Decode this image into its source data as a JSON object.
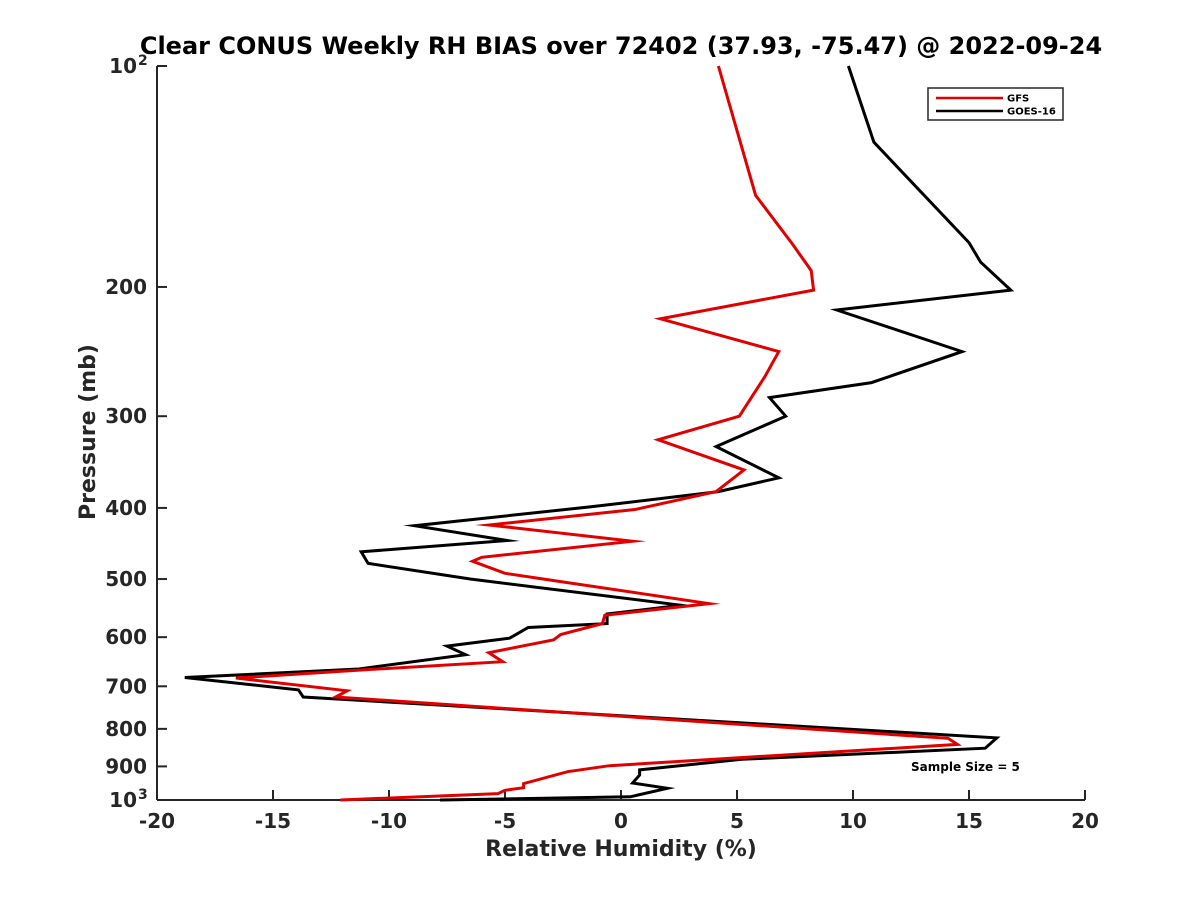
{
  "chart_data": {
    "type": "line",
    "title": "Clear CONUS Weekly RH BIAS over 72402 (37.93, -75.47) @ 2022-09-24",
    "xlabel": "Relative Humidity (%)",
    "ylabel": "Pressure (mb)",
    "xlim": [
      -20,
      20
    ],
    "ylim": [
      100,
      1000
    ],
    "yscale": "log",
    "y_reversed": true,
    "x_ticks": [
      {
        "value": -20,
        "label": "-20"
      },
      {
        "value": -15,
        "label": "-15"
      },
      {
        "value": -10,
        "label": "-10"
      },
      {
        "value": -5,
        "label": "-5"
      },
      {
        "value": 0,
        "label": "0"
      },
      {
        "value": 5,
        "label": "5"
      },
      {
        "value": 10,
        "label": "10"
      },
      {
        "value": 15,
        "label": "15"
      },
      {
        "value": 20,
        "label": "20"
      }
    ],
    "y_ticks": [
      {
        "value": 100,
        "label": "10",
        "sup": "2"
      },
      {
        "value": 200,
        "label": "200",
        "sup": ""
      },
      {
        "value": 300,
        "label": "300",
        "sup": ""
      },
      {
        "value": 400,
        "label": "400",
        "sup": ""
      },
      {
        "value": 500,
        "label": "500",
        "sup": ""
      },
      {
        "value": 600,
        "label": "600",
        "sup": ""
      },
      {
        "value": 700,
        "label": "700",
        "sup": ""
      },
      {
        "value": 800,
        "label": "800",
        "sup": ""
      },
      {
        "value": 900,
        "label": "900",
        "sup": ""
      },
      {
        "value": 1000,
        "label": "10",
        "sup": "3"
      }
    ],
    "legend_position": "top-right",
    "annotation": "Sample Size = 5",
    "series": [
      {
        "name": "GFS",
        "color": "#e00000",
        "points": [
          [
            4.2,
            100
          ],
          [
            5.8,
            150
          ],
          [
            7.4,
            175
          ],
          [
            8.2,
            190
          ],
          [
            8.3,
            202
          ],
          [
            1.7,
            221
          ],
          [
            6.8,
            245
          ],
          [
            6.2,
            265
          ],
          [
            5.1,
            300
          ],
          [
            1.6,
            323
          ],
          [
            5.3,
            355
          ],
          [
            4.1,
            380
          ],
          [
            0.6,
            402
          ],
          [
            -5.7,
            422
          ],
          [
            0.5,
            444
          ],
          [
            -6.0,
            467
          ],
          [
            -6.4,
            473
          ],
          [
            -5.0,
            491
          ],
          [
            -2.6,
            504
          ],
          [
            3.8,
            540
          ],
          [
            -0.7,
            560
          ],
          [
            -0.8,
            575
          ],
          [
            -2.6,
            595
          ],
          [
            -2.9,
            605
          ],
          [
            -5.7,
            630
          ],
          [
            -5.1,
            648
          ],
          [
            -11.2,
            665
          ],
          [
            -16.6,
            682
          ],
          [
            -11.8,
            710
          ],
          [
            -12.3,
            724
          ],
          [
            14.1,
            824
          ],
          [
            14.5,
            840
          ],
          [
            -0.5,
            898
          ],
          [
            -2.3,
            915
          ],
          [
            -4.2,
            950
          ],
          [
            -4.2,
            962
          ],
          [
            -5.0,
            970
          ],
          [
            -5.3,
            980
          ],
          [
            -12.1,
            1000
          ]
        ]
      },
      {
        "name": "GOES-16",
        "color": "#000000",
        "points": [
          [
            9.8,
            100
          ],
          [
            10.9,
            127
          ],
          [
            15.0,
            174
          ],
          [
            15.5,
            185
          ],
          [
            16.8,
            202
          ],
          [
            9.3,
            215
          ],
          [
            14.7,
            245
          ],
          [
            10.8,
            270
          ],
          [
            6.4,
            283
          ],
          [
            7.1,
            300
          ],
          [
            4.1,
            330
          ],
          [
            6.8,
            364
          ],
          [
            4.2,
            380
          ],
          [
            -1.1,
            398
          ],
          [
            -8.9,
            423
          ],
          [
            -4.9,
            443
          ],
          [
            -11.2,
            459
          ],
          [
            -10.9,
            476
          ],
          [
            -6.5,
            500
          ],
          [
            2.6,
            543
          ],
          [
            -0.6,
            558
          ],
          [
            -0.6,
            575
          ],
          [
            -4.0,
            582
          ],
          [
            -4.8,
            602
          ],
          [
            -7.5,
            617
          ],
          [
            -6.7,
            634
          ],
          [
            -11.3,
            663
          ],
          [
            -18.8,
            681
          ],
          [
            -13.9,
            708
          ],
          [
            -13.7,
            724
          ],
          [
            16.2,
            823
          ],
          [
            15.7,
            850
          ],
          [
            5.2,
            880
          ],
          [
            0.8,
            910
          ],
          [
            0.8,
            925
          ],
          [
            0.5,
            948
          ],
          [
            2.0,
            964
          ],
          [
            0.4,
            990
          ],
          [
            -7.8,
            1000
          ]
        ]
      }
    ]
  }
}
